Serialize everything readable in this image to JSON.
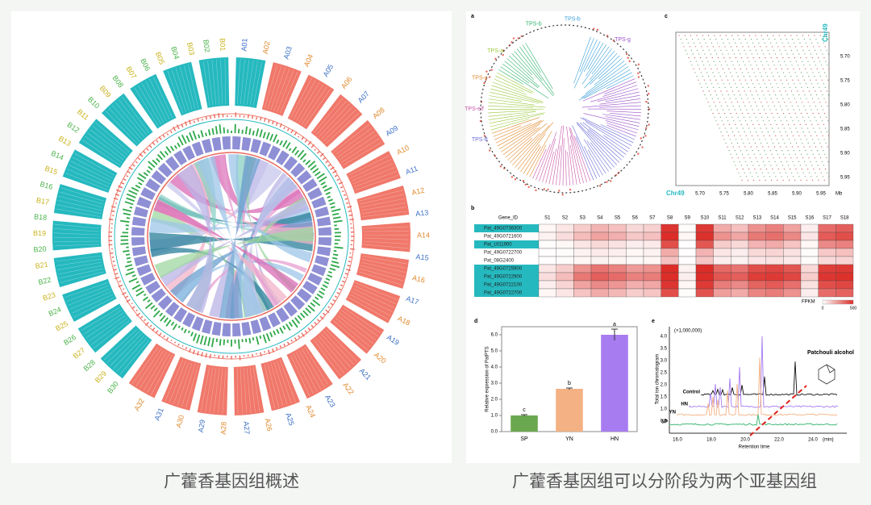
{
  "captions": {
    "left": "广藿香基因组概述",
    "right": "广藿香基因组可以分阶段为两个亚基因组"
  },
  "circos": {
    "a_labels": [
      "A01",
      "A02",
      "A03",
      "A04",
      "A05",
      "A06",
      "A07",
      "A08",
      "A09",
      "A10",
      "A11",
      "A12",
      "A13",
      "A14",
      "A15",
      "A16",
      "A17",
      "A18",
      "A19",
      "A20",
      "A21",
      "A22",
      "A23",
      "A24",
      "A25",
      "A26",
      "A27",
      "A28",
      "A29",
      "A30",
      "A31",
      "A32"
    ],
    "b_labels": [
      "B30",
      "B29",
      "B28",
      "B27",
      "B26",
      "B25",
      "B24",
      "B23",
      "B22",
      "B21",
      "B20",
      "B19",
      "B18",
      "B17",
      "B16",
      "B15",
      "B14",
      "B13",
      "B12",
      "B11",
      "B10",
      "B09",
      "B08",
      "B07",
      "B06",
      "B05",
      "B04",
      "B03",
      "B02",
      "B01"
    ]
  },
  "tree": {
    "panel": "a",
    "clades": [
      "TPS-b",
      "TPS-g",
      "TPS-d",
      "TPS-e/f",
      "TPS-c",
      "TPS-a",
      "TPS-b"
    ]
  },
  "dotplot": {
    "panel": "c",
    "top_label": "Chr49",
    "left_label": "Chr49",
    "unit": "Mb",
    "xticks": [
      "5.70",
      "5.75",
      "5.80",
      "5.85",
      "5.90",
      "5.95"
    ],
    "yticks": [
      "5.70",
      "5.75",
      "5.80",
      "5.85",
      "5.90",
      "5.95"
    ]
  },
  "heatmap": {
    "panel": "b",
    "header": "Gene_ID",
    "columns": [
      "S1",
      "S2",
      "S3",
      "S4",
      "S5",
      "S6",
      "S7",
      "S8",
      "S9",
      "S10",
      "S11",
      "S12",
      "S13",
      "S14",
      "S15",
      "S16",
      "S17",
      "S18"
    ],
    "rows": [
      "Pat_49G0736300",
      "Pat_49G0721600",
      "Pat_UI11900",
      "Pat_49G0722700",
      "Pat_08G2400",
      "Pat_49G0725900",
      "Pat_49G0722900",
      "Pat_49G0722100",
      "Pat_49G0722700"
    ],
    "values": [
      [
        20,
        60,
        120,
        180,
        150,
        90,
        110,
        480,
        10,
        470,
        200,
        150,
        260,
        300,
        220,
        40,
        350,
        380
      ],
      [
        30,
        80,
        160,
        220,
        190,
        130,
        150,
        500,
        20,
        490,
        260,
        210,
        320,
        340,
        280,
        60,
        390,
        420
      ],
      [
        10,
        20,
        60,
        90,
        70,
        40,
        50,
        420,
        5,
        400,
        120,
        90,
        180,
        200,
        140,
        20,
        280,
        300
      ],
      [
        5,
        10,
        30,
        50,
        40,
        20,
        30,
        200,
        5,
        180,
        60,
        40,
        90,
        100,
        70,
        10,
        130,
        150
      ],
      [
        5,
        10,
        20,
        30,
        25,
        15,
        20,
        150,
        5,
        140,
        40,
        30,
        60,
        70,
        50,
        10,
        90,
        100
      ],
      [
        60,
        120,
        260,
        330,
        300,
        240,
        260,
        500,
        30,
        500,
        360,
        330,
        420,
        440,
        400,
        90,
        460,
        470
      ],
      [
        80,
        160,
        320,
        380,
        350,
        300,
        310,
        500,
        40,
        500,
        400,
        380,
        460,
        470,
        440,
        120,
        480,
        490
      ],
      [
        40,
        100,
        220,
        280,
        250,
        190,
        210,
        480,
        20,
        470,
        310,
        280,
        370,
        390,
        340,
        70,
        420,
        440
      ],
      [
        20,
        60,
        140,
        200,
        170,
        120,
        140,
        420,
        10,
        410,
        230,
        200,
        290,
        310,
        260,
        40,
        350,
        370
      ]
    ],
    "legend_title": "FPKM",
    "legend_ticks": [
      0,
      500
    ]
  },
  "chart_data": {
    "type": "bar",
    "panel": "d",
    "y_label": "Relative expression of PatPTS",
    "categories": [
      "SP",
      "YN",
      "HN"
    ],
    "values": [
      1.0,
      2.65,
      6.0
    ],
    "errors": [
      0.05,
      0.05,
      0.35
    ],
    "annotations": [
      "c",
      "b",
      "a"
    ],
    "colors": [
      "#6aa84f",
      "#f4b183",
      "#a77cf0"
    ],
    "ylim": [
      0,
      6.5
    ],
    "yticks": [
      {
        "value": 0,
        "label": "0.0"
      },
      {
        "value": 1,
        "label": "1.0"
      },
      {
        "value": 2,
        "label": "2.0"
      },
      {
        "value": 3,
        "label": "3.0"
      },
      {
        "value": 4,
        "label": "4.0"
      },
      {
        "value": 5,
        "label": "5.0"
      },
      {
        "value": 6,
        "label": "6.0"
      }
    ]
  },
  "chromatogram": {
    "panel": "e",
    "scale_note": "(×1,000,000)",
    "y_label": "Total ion chromatogram",
    "x_label": "Retention time",
    "x_unit": "(min)",
    "xticks": [
      "16.0",
      "18.0",
      "20.0",
      "22.0",
      "24.0"
    ],
    "yticks": [
      "0.5",
      "1.0",
      "1.5",
      "2.0",
      "2.5",
      "3.0",
      "3.5",
      "4.0"
    ],
    "traces": [
      "Control",
      "HN",
      "YN",
      "SP"
    ],
    "compound": "Patchouli alcohol"
  }
}
